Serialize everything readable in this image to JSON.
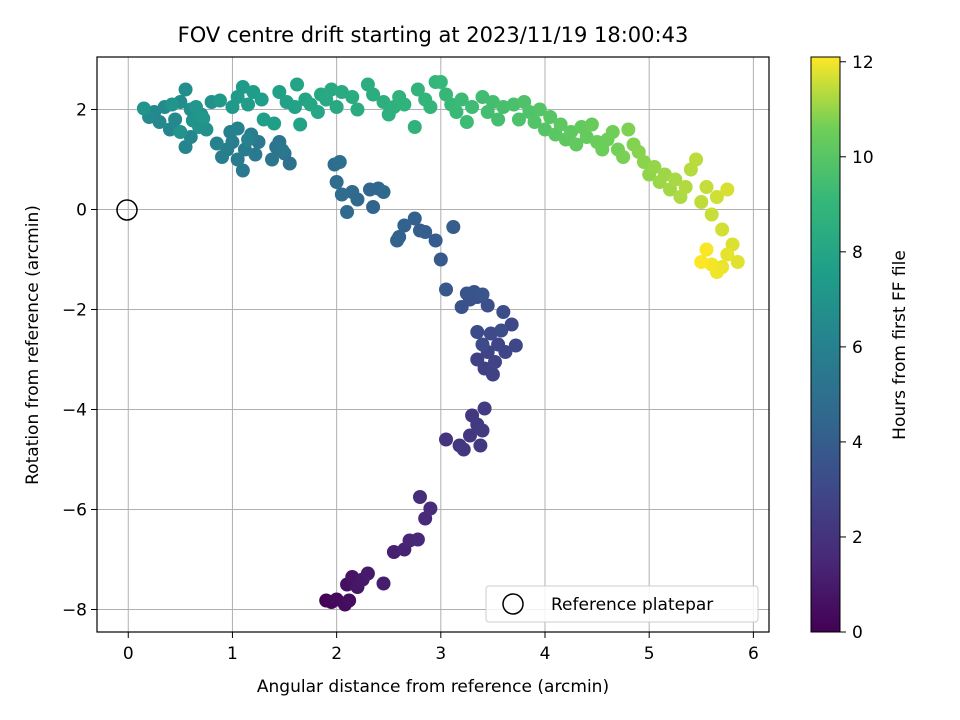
{
  "chart_data": {
    "type": "scatter",
    "title": "FOV centre drift starting at 2023/11/19 18:00:43",
    "xlabel": "Angular distance from reference (arcmin)",
    "ylabel": "Rotation from reference (arcmin)",
    "xlim": [
      -0.3,
      6.15
    ],
    "ylim": [
      -8.45,
      3.05
    ],
    "xticks": [
      0,
      1,
      2,
      3,
      4,
      5,
      6
    ],
    "yticks": [
      -8,
      -6,
      -4,
      -2,
      0,
      2
    ],
    "grid": true,
    "colormap": "viridis",
    "colorbar": {
      "label": "Hours from first FF file",
      "min": 0,
      "max": 12.1,
      "ticks": [
        0,
        2,
        4,
        6,
        8,
        10,
        12
      ]
    },
    "legend": {
      "position": "lower-right",
      "entries": [
        "Reference platepar"
      ]
    },
    "reference_point": {
      "x": 0,
      "y": 0
    },
    "points": [
      [
        1.9,
        -7.82,
        0.1
      ],
      [
        1.95,
        -7.85,
        0.2
      ],
      [
        2.0,
        -7.8,
        0.3
      ],
      [
        2.08,
        -7.9,
        0.4
      ],
      [
        2.12,
        -7.82,
        0.5
      ],
      [
        2.1,
        -7.5,
        0.6
      ],
      [
        2.15,
        -7.35,
        0.7
      ],
      [
        2.2,
        -7.55,
        0.8
      ],
      [
        2.25,
        -7.4,
        0.9
      ],
      [
        2.3,
        -7.28,
        1.0
      ],
      [
        2.45,
        -7.48,
        1.1
      ],
      [
        2.55,
        -6.85,
        1.2
      ],
      [
        2.65,
        -6.8,
        1.3
      ],
      [
        2.7,
        -6.62,
        1.4
      ],
      [
        2.78,
        -6.6,
        1.5
      ],
      [
        2.85,
        -6.18,
        1.6
      ],
      [
        2.9,
        -5.98,
        1.7
      ],
      [
        2.8,
        -5.75,
        1.8
      ],
      [
        3.05,
        -4.6,
        2.0
      ],
      [
        3.18,
        -4.72,
        2.1
      ],
      [
        3.22,
        -4.8,
        2.15
      ],
      [
        3.28,
        -4.52,
        2.2
      ],
      [
        3.3,
        -4.12,
        2.25
      ],
      [
        3.35,
        -4.3,
        2.3
      ],
      [
        3.38,
        -4.72,
        2.35
      ],
      [
        3.4,
        -4.42,
        2.4
      ],
      [
        3.42,
        -3.98,
        2.45
      ],
      [
        3.35,
        -3.0,
        2.6
      ],
      [
        3.42,
        -3.18,
        2.65
      ],
      [
        3.5,
        -3.3,
        2.7
      ],
      [
        3.52,
        -3.05,
        2.75
      ],
      [
        3.45,
        -2.85,
        2.8
      ],
      [
        3.55,
        -2.7,
        2.85
      ],
      [
        3.62,
        -2.85,
        2.9
      ],
      [
        3.72,
        -2.72,
        2.95
      ],
      [
        3.68,
        -2.3,
        3.0
      ],
      [
        3.48,
        -2.48,
        3.05
      ],
      [
        3.35,
        -2.45,
        3.1
      ],
      [
        3.4,
        -2.7,
        3.15
      ],
      [
        3.58,
        -2.42,
        3.2
      ],
      [
        3.6,
        -2.05,
        3.25
      ],
      [
        3.45,
        -1.92,
        3.3
      ],
      [
        3.35,
        -1.75,
        3.35
      ],
      [
        3.28,
        -1.8,
        3.4
      ],
      [
        3.2,
        -1.95,
        3.45
      ],
      [
        3.25,
        -1.68,
        3.5
      ],
      [
        3.32,
        -1.65,
        3.55
      ],
      [
        3.4,
        -1.7,
        3.6
      ],
      [
        3.05,
        -1.6,
        3.7
      ],
      [
        3.0,
        -1.0,
        3.8
      ],
      [
        2.95,
        -0.62,
        3.9
      ],
      [
        3.12,
        -0.35,
        4.0
      ],
      [
        2.8,
        -0.42,
        4.05
      ],
      [
        2.85,
        -0.45,
        4.1
      ],
      [
        2.75,
        -0.18,
        4.15
      ],
      [
        2.6,
        -0.55,
        4.2
      ],
      [
        2.65,
        -0.32,
        4.25
      ],
      [
        2.58,
        -0.62,
        4.3
      ],
      [
        2.35,
        0.05,
        4.4
      ],
      [
        2.32,
        0.4,
        4.45
      ],
      [
        2.4,
        0.42,
        4.5
      ],
      [
        2.45,
        0.35,
        4.55
      ],
      [
        2.2,
        0.2,
        4.6
      ],
      [
        2.1,
        -0.05,
        4.65
      ],
      [
        2.15,
        0.35,
        4.7
      ],
      [
        2.05,
        0.3,
        4.75
      ],
      [
        2.0,
        0.55,
        4.8
      ],
      [
        1.98,
        0.9,
        4.85
      ],
      [
        2.03,
        0.95,
        4.9
      ],
      [
        1.55,
        0.92,
        5.0
      ],
      [
        1.5,
        1.12,
        5.1
      ],
      [
        1.42,
        1.25,
        5.2
      ],
      [
        1.38,
        1.0,
        5.3
      ],
      [
        1.45,
        1.35,
        5.35
      ],
      [
        1.48,
        1.18,
        5.4
      ],
      [
        1.25,
        1.35,
        5.5
      ],
      [
        1.22,
        1.1,
        5.55
      ],
      [
        1.1,
        0.78,
        5.6
      ],
      [
        1.05,
        1.0,
        5.65
      ],
      [
        1.12,
        1.2,
        5.7
      ],
      [
        1.18,
        1.5,
        5.75
      ],
      [
        1.0,
        1.35,
        5.8
      ],
      [
        0.95,
        1.2,
        5.85
      ],
      [
        0.9,
        1.05,
        5.9
      ],
      [
        0.98,
        1.55,
        5.95
      ],
      [
        1.05,
        1.62,
        6.0
      ],
      [
        1.15,
        1.4,
        6.05
      ],
      [
        0.85,
        1.32,
        6.1
      ],
      [
        0.55,
        1.25,
        6.2
      ],
      [
        0.6,
        1.45,
        6.25
      ],
      [
        0.4,
        1.6,
        6.3
      ],
      [
        0.45,
        1.8,
        6.35
      ],
      [
        0.3,
        1.75,
        6.4
      ],
      [
        0.25,
        1.95,
        6.45
      ],
      [
        0.2,
        1.85,
        6.5
      ],
      [
        0.35,
        2.05,
        6.55
      ],
      [
        0.5,
        2.15,
        6.6
      ],
      [
        0.55,
        2.4,
        6.65
      ],
      [
        0.6,
        2.0,
        6.7
      ],
      [
        0.7,
        1.9,
        6.75
      ],
      [
        0.75,
        1.6,
        6.8
      ],
      [
        0.8,
        2.15,
        6.85
      ],
      [
        0.68,
        1.65,
        6.9
      ],
      [
        0.62,
        1.78,
        6.95
      ],
      [
        0.5,
        1.55,
        7.0
      ],
      [
        0.42,
        2.1,
        7.05
      ],
      [
        0.15,
        2.02,
        7.1
      ],
      [
        0.65,
        2.05,
        7.15
      ],
      [
        0.72,
        1.82,
        7.2
      ],
      [
        0.88,
        2.18,
        7.25
      ],
      [
        1.0,
        2.05,
        7.3
      ],
      [
        1.05,
        2.25,
        7.35
      ],
      [
        1.1,
        2.45,
        7.4
      ],
      [
        1.15,
        2.1,
        7.45
      ],
      [
        1.2,
        2.35,
        7.5
      ],
      [
        1.28,
        2.2,
        7.55
      ],
      [
        1.3,
        1.8,
        7.6
      ],
      [
        1.4,
        1.72,
        7.65
      ],
      [
        1.45,
        2.35,
        7.7
      ],
      [
        1.52,
        2.15,
        7.75
      ],
      [
        1.6,
        2.05,
        7.8
      ],
      [
        1.65,
        1.7,
        7.85
      ],
      [
        1.7,
        2.2,
        7.9
      ],
      [
        1.62,
        2.5,
        7.95
      ],
      [
        1.75,
        2.1,
        8.0
      ],
      [
        1.82,
        1.95,
        8.05
      ],
      [
        1.85,
        2.3,
        8.1
      ],
      [
        1.9,
        2.2,
        8.15
      ],
      [
        1.95,
        2.4,
        8.2
      ],
      [
        2.0,
        2.05,
        8.25
      ],
      [
        2.05,
        2.35,
        8.3
      ],
      [
        2.15,
        2.25,
        8.35
      ],
      [
        2.2,
        2.0,
        8.4
      ],
      [
        2.3,
        2.5,
        8.45
      ],
      [
        2.35,
        2.3,
        8.5
      ],
      [
        2.45,
        2.15,
        8.55
      ],
      [
        2.5,
        1.9,
        8.6
      ],
      [
        2.55,
        2.05,
        8.65
      ],
      [
        2.6,
        2.25,
        8.7
      ],
      [
        2.65,
        2.1,
        8.75
      ],
      [
        2.75,
        1.65,
        8.8
      ],
      [
        2.78,
        2.4,
        8.85
      ],
      [
        2.85,
        2.2,
        8.9
      ],
      [
        2.9,
        2.05,
        8.95
      ],
      [
        2.95,
        2.55,
        9.0
      ],
      [
        3.0,
        2.55,
        9.05
      ],
      [
        3.05,
        2.3,
        9.1
      ],
      [
        3.1,
        2.1,
        9.15
      ],
      [
        3.15,
        1.95,
        9.2
      ],
      [
        3.2,
        2.2,
        9.25
      ],
      [
        3.25,
        1.75,
        9.3
      ],
      [
        3.3,
        2.05,
        9.35
      ],
      [
        3.4,
        2.25,
        9.4
      ],
      [
        3.45,
        1.95,
        9.45
      ],
      [
        3.5,
        2.15,
        9.5
      ],
      [
        3.55,
        1.8,
        9.55
      ],
      [
        3.6,
        2.05,
        9.6
      ],
      [
        3.7,
        2.1,
        9.65
      ],
      [
        3.75,
        1.8,
        9.7
      ],
      [
        3.8,
        2.15,
        9.75
      ],
      [
        3.85,
        1.95,
        9.8
      ],
      [
        3.9,
        1.75,
        9.85
      ],
      [
        3.95,
        2.0,
        9.9
      ],
      [
        4.0,
        1.6,
        9.95
      ],
      [
        4.05,
        1.85,
        10.0
      ],
      [
        4.1,
        1.5,
        10.05
      ],
      [
        4.15,
        1.7,
        10.1
      ],
      [
        4.2,
        1.4,
        10.15
      ],
      [
        4.25,
        1.55,
        10.2
      ],
      [
        4.3,
        1.3,
        10.25
      ],
      [
        4.35,
        1.65,
        10.3
      ],
      [
        4.4,
        1.45,
        10.35
      ],
      [
        4.45,
        1.7,
        10.4
      ],
      [
        4.5,
        1.35,
        10.45
      ],
      [
        4.55,
        1.2,
        10.5
      ],
      [
        4.6,
        1.4,
        10.55
      ],
      [
        4.65,
        1.55,
        10.6
      ],
      [
        4.7,
        1.2,
        10.65
      ],
      [
        4.75,
        1.05,
        10.7
      ],
      [
        4.8,
        1.6,
        10.75
      ],
      [
        4.85,
        1.3,
        10.8
      ],
      [
        4.9,
        1.15,
        10.85
      ],
      [
        4.95,
        0.95,
        10.9
      ],
      [
        5.0,
        0.7,
        10.95
      ],
      [
        5.05,
        0.85,
        11.0
      ],
      [
        5.1,
        0.55,
        11.05
      ],
      [
        5.15,
        0.7,
        11.1
      ],
      [
        5.2,
        0.4,
        11.15
      ],
      [
        5.25,
        0.6,
        11.2
      ],
      [
        5.3,
        0.25,
        11.25
      ],
      [
        5.35,
        0.45,
        11.3
      ],
      [
        5.4,
        0.8,
        11.35
      ],
      [
        5.45,
        1.0,
        11.4
      ],
      [
        5.5,
        0.15,
        11.45
      ],
      [
        5.55,
        0.45,
        11.5
      ],
      [
        5.6,
        -0.1,
        11.55
      ],
      [
        5.65,
        0.25,
        11.6
      ],
      [
        5.7,
        -0.4,
        11.65
      ],
      [
        5.75,
        0.4,
        11.7
      ],
      [
        5.8,
        -0.7,
        11.75
      ],
      [
        5.85,
        -1.05,
        11.8
      ],
      [
        5.75,
        -0.9,
        11.85
      ],
      [
        5.7,
        -1.15,
        11.9
      ],
      [
        5.65,
        -1.25,
        11.95
      ],
      [
        5.6,
        -1.1,
        12.0
      ],
      [
        5.55,
        -0.8,
        12.05
      ],
      [
        5.5,
        -1.05,
        12.1
      ]
    ]
  }
}
